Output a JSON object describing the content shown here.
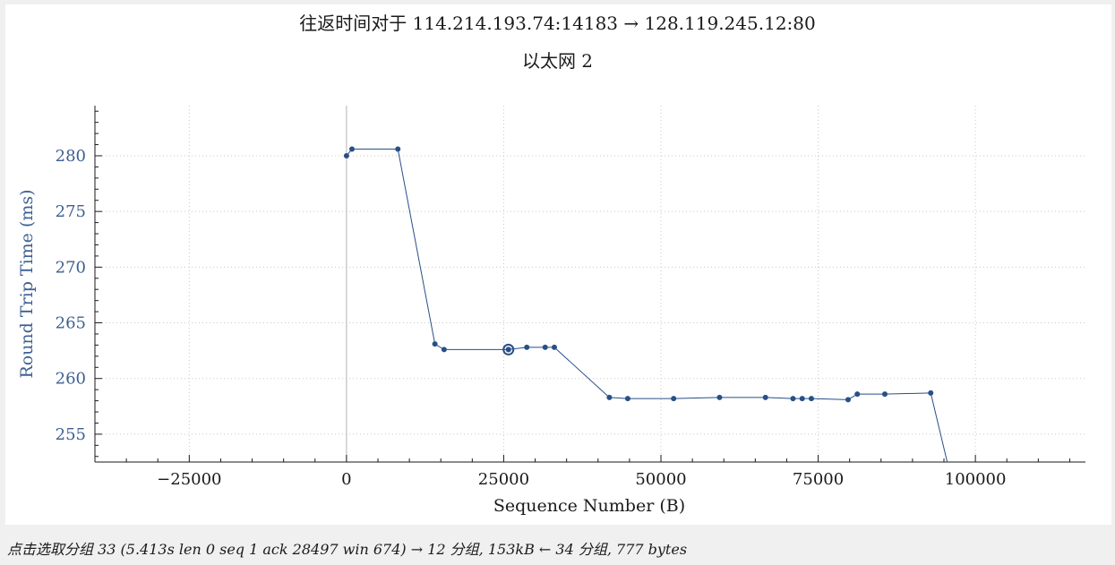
{
  "chart_data": {
    "type": "line",
    "title": "往返时间对于 114.214.193.74:14183 → 128.119.245.12:80",
    "subtitle": "以太网 2",
    "xlabel": "Sequence Number (B)",
    "ylabel": "Round Trip Time (ms)",
    "xlim": [
      -40000,
      117500
    ],
    "ylim": [
      252.5,
      284.5
    ],
    "xticks": [
      -25000,
      0,
      25000,
      50000,
      75000,
      100000
    ],
    "xtick_labels": [
      "−25000",
      "0",
      "25000",
      "50000",
      "75000",
      "100000"
    ],
    "yticks": [
      255,
      260,
      265,
      270,
      275,
      280
    ],
    "ytick_labels": [
      "255",
      "260",
      "265",
      "270",
      "275",
      "280"
    ],
    "grid": true,
    "line_color": "#284f86",
    "series": [
      {
        "x": [
          1,
          870,
          8170,
          14060,
          15520,
          25750,
          28670,
          31590,
          33050,
          41800,
          44720,
          52020,
          59320,
          66620,
          71000,
          72460,
          73920,
          79760,
          81220,
          85600,
          92900,
          97000
        ],
        "y": [
          280.0,
          280.6,
          280.6,
          263.1,
          262.6,
          262.6,
          262.8,
          262.8,
          262.8,
          258.3,
          258.2,
          258.2,
          258.3,
          258.3,
          258.2,
          258.2,
          258.2,
          258.1,
          258.6,
          258.6,
          258.7,
          249.0
        ]
      }
    ],
    "selected_point": {
      "x": 25750,
      "y": 262.6
    }
  },
  "status_bar": {
    "text": "点击选取分组 33 (5.413s len 0 seq 1 ack 28497 win 674) → 12 分组, 153kB ← 34 分组, 777 bytes"
  }
}
